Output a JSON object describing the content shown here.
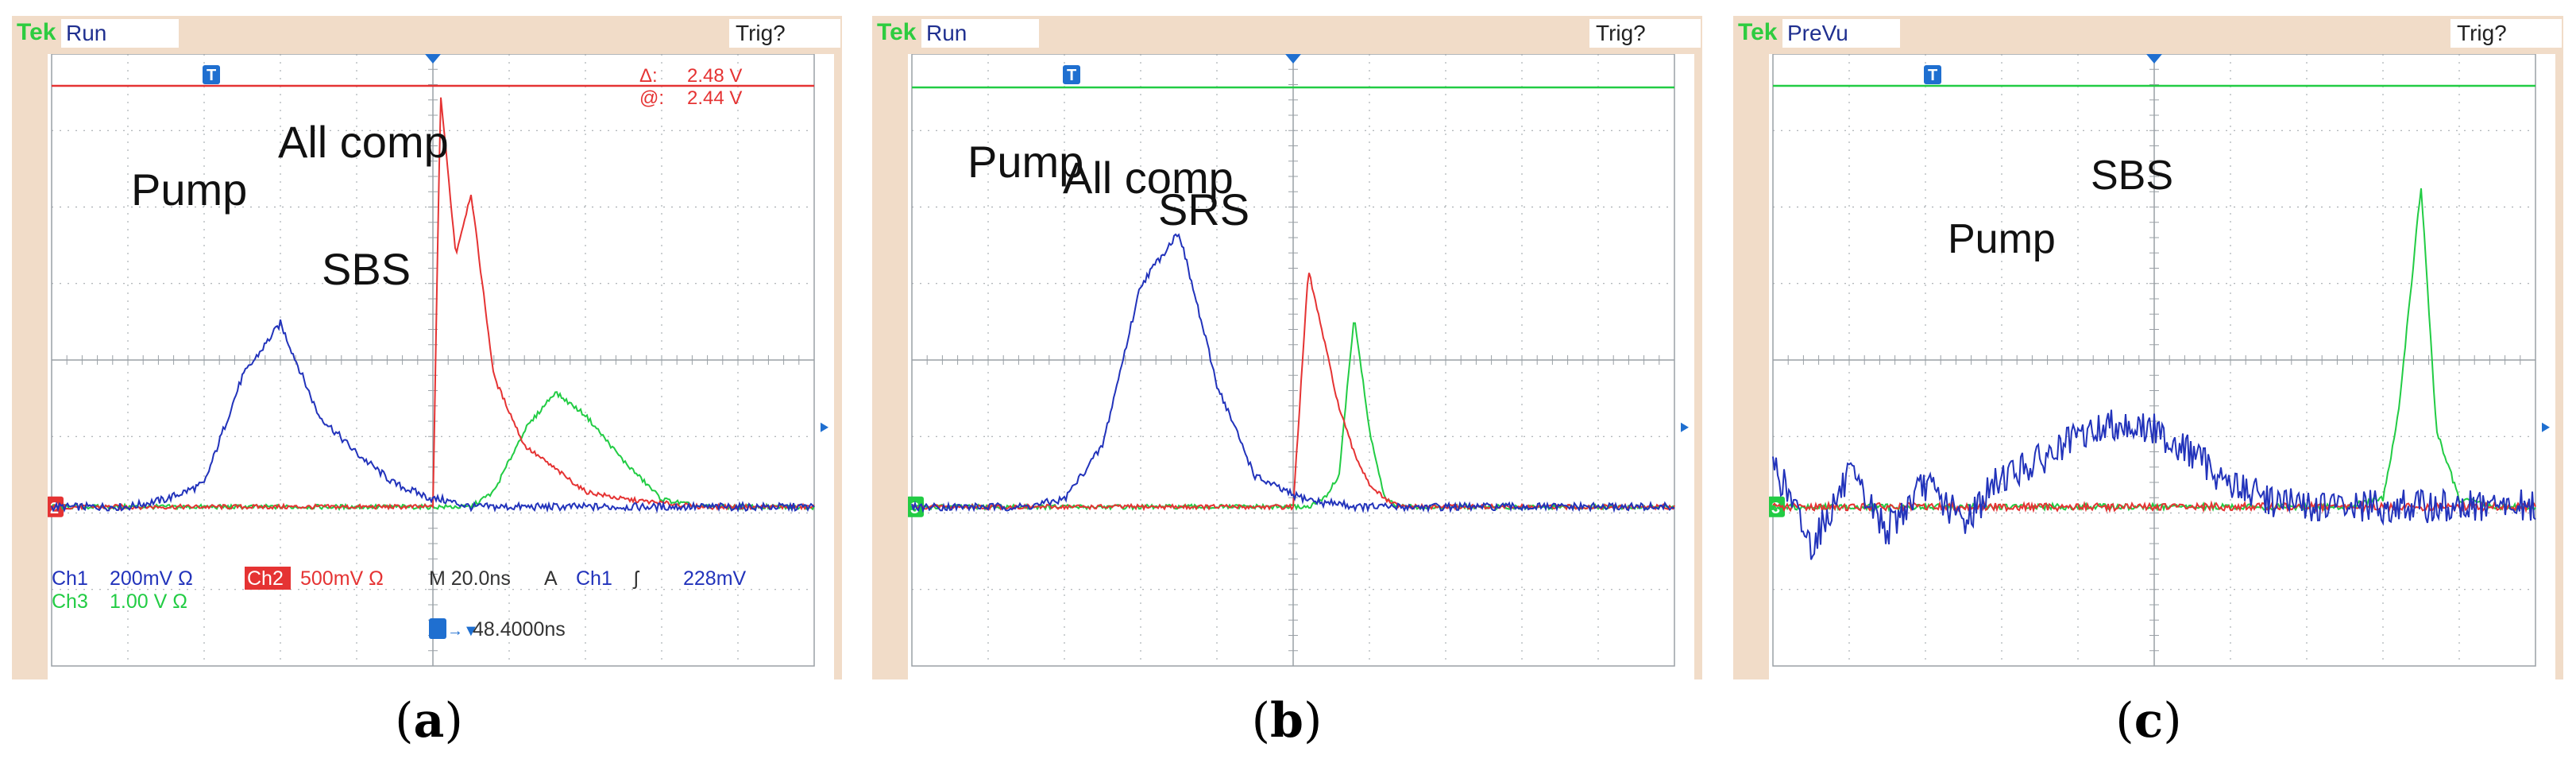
{
  "panels": [
    {
      "id": "a",
      "caption": "a",
      "header": {
        "brand": "Tek",
        "status": "Run",
        "trigger": "Trig?"
      },
      "cursor_readout": {
        "delta_label": "Δ:",
        "delta_value": "2.48 V",
        "at_label": "@:",
        "at_value": "2.44 V"
      },
      "labels": [
        {
          "text": "Pump"
        },
        {
          "text": "All comp"
        },
        {
          "text": "SBS"
        }
      ],
      "ground_marker": "2",
      "bottom_readout": {
        "line1": [
          "Ch1",
          "200mV Ω",
          "Ch2",
          "500mV Ω",
          "M 20.0ns",
          "A",
          "Ch1",
          "ʃ",
          "228mV"
        ],
        "line2": [
          "Ch3",
          "1.00 V Ω"
        ],
        "line3": "48.4000ns"
      }
    },
    {
      "id": "b",
      "caption": "b",
      "header": {
        "brand": "Tek",
        "status": "Run",
        "trigger": "Trig?"
      },
      "labels": [
        {
          "text": "Pump"
        },
        {
          "text": "All comp"
        },
        {
          "text": "SRS"
        }
      ],
      "ground_marker": "3"
    },
    {
      "id": "c",
      "caption": "c",
      "header": {
        "brand": "Tek",
        "status": "PreVu",
        "trigger": "Trig?"
      },
      "labels": [
        {
          "text": "Pump"
        },
        {
          "text": "SBS"
        }
      ],
      "ground_marker": "3"
    }
  ],
  "colors": {
    "ch1": "#2233bb",
    "ch2": "#e53333",
    "ch3": "#22cc44",
    "grid": "#9aa0a6",
    "frame": "#f1dcc8",
    "trigger_marker": "#1f6fd0"
  },
  "chart_data": [
    {
      "type": "line",
      "panel": "a",
      "x": [
        -5,
        -4.5,
        -4,
        -3.5,
        -3,
        -2.5,
        -2,
        -1.5,
        -1,
        -0.5,
        0,
        0.1,
        0.3,
        0.5,
        0.8,
        1.2,
        1.6,
        2,
        2.5,
        3,
        3.5,
        4,
        4.5,
        5
      ],
      "series": [
        {
          "name": "Ch1",
          "values": [
            0,
            0,
            0,
            0.1,
            0.3,
            1.7,
            2.4,
            1.2,
            0.7,
            0.3,
            0.1,
            0.1,
            0.05,
            0,
            0,
            0,
            0,
            0,
            0,
            0,
            0,
            0,
            0,
            0
          ]
        },
        {
          "name": "Ch2",
          "values": [
            0,
            0,
            0,
            0,
            0,
            0,
            0,
            0,
            0,
            0,
            0,
            5.4,
            3.3,
            4.1,
            1.7,
            0.8,
            0.5,
            0.2,
            0.1,
            0.05,
            0,
            0,
            0,
            0
          ]
        },
        {
          "name": "Ch3",
          "values": [
            0,
            0,
            0,
            0,
            0,
            0,
            0,
            0,
            0,
            0,
            0,
            0,
            0,
            0,
            0.2,
            1.0,
            1.5,
            1.2,
            0.6,
            0.1,
            0,
            0,
            0,
            0
          ]
        }
      ]
    },
    {
      "type": "line",
      "panel": "b",
      "x": [
        -5,
        -4.5,
        -4,
        -3.5,
        -3,
        -2.5,
        -2,
        -1.5,
        -1,
        -0.5,
        0,
        0.2,
        0.4,
        0.6,
        0.8,
        1,
        1.2,
        1.4,
        1.6,
        2,
        2.5,
        3,
        3.5,
        4,
        4.5,
        5
      ],
      "series": [
        {
          "name": "Ch1",
          "values": [
            0,
            0,
            0,
            0,
            0.1,
            0.8,
            2.9,
            3.6,
            1.6,
            0.4,
            0.15,
            0.1,
            0.05,
            0.05,
            0,
            0,
            0,
            0,
            0,
            0,
            0,
            0,
            0,
            0,
            0,
            0
          ]
        },
        {
          "name": "Ch2",
          "values": [
            0,
            0,
            0,
            0,
            0,
            0,
            0,
            0,
            0,
            0,
            0,
            3.1,
            2.2,
            1.3,
            0.7,
            0.3,
            0.1,
            0,
            0,
            0,
            0,
            0,
            0,
            0,
            0,
            0
          ]
        },
        {
          "name": "Ch3",
          "values": [
            0,
            0,
            0,
            0,
            0,
            0,
            0,
            0,
            0,
            0,
            0,
            0,
            0.1,
            0.4,
            2.5,
            1.0,
            0.1,
            0,
            0,
            0,
            0,
            0,
            0,
            0,
            0,
            0
          ]
        }
      ]
    },
    {
      "type": "line",
      "panel": "c",
      "x": [
        -5,
        -4.5,
        -4,
        -3.5,
        -3,
        -2.5,
        -2,
        -1.5,
        -1,
        -0.5,
        0,
        0.5,
        1,
        1.5,
        2,
        2.5,
        3,
        3.2,
        3.5,
        3.7,
        4,
        4.5,
        5
      ],
      "series": [
        {
          "name": "Ch1",
          "values": [
            0.6,
            -0.5,
            0.4,
            -0.3,
            0.3,
            -0.2,
            0.4,
            0.6,
            0.9,
            1.1,
            1.0,
            0.7,
            0.3,
            0.1,
            0,
            0,
            0,
            0,
            0,
            0,
            0,
            0,
            0
          ]
        },
        {
          "name": "Ch2",
          "values": [
            0,
            0,
            0,
            0,
            0,
            0,
            0,
            0,
            0,
            0,
            0,
            0,
            0,
            0,
            0,
            0,
            0,
            0,
            0,
            0,
            0,
            0,
            0
          ]
        },
        {
          "name": "Ch3",
          "values": [
            0,
            0,
            0,
            0,
            0,
            0,
            0,
            0,
            0,
            0,
            0,
            0,
            0,
            0,
            0,
            0,
            0.1,
            1.2,
            4.2,
            1.0,
            0.1,
            0,
            0
          ]
        }
      ],
      "xlim": [
        -5,
        5
      ],
      "ylim": [
        -4,
        4
      ],
      "grid": true
    }
  ]
}
